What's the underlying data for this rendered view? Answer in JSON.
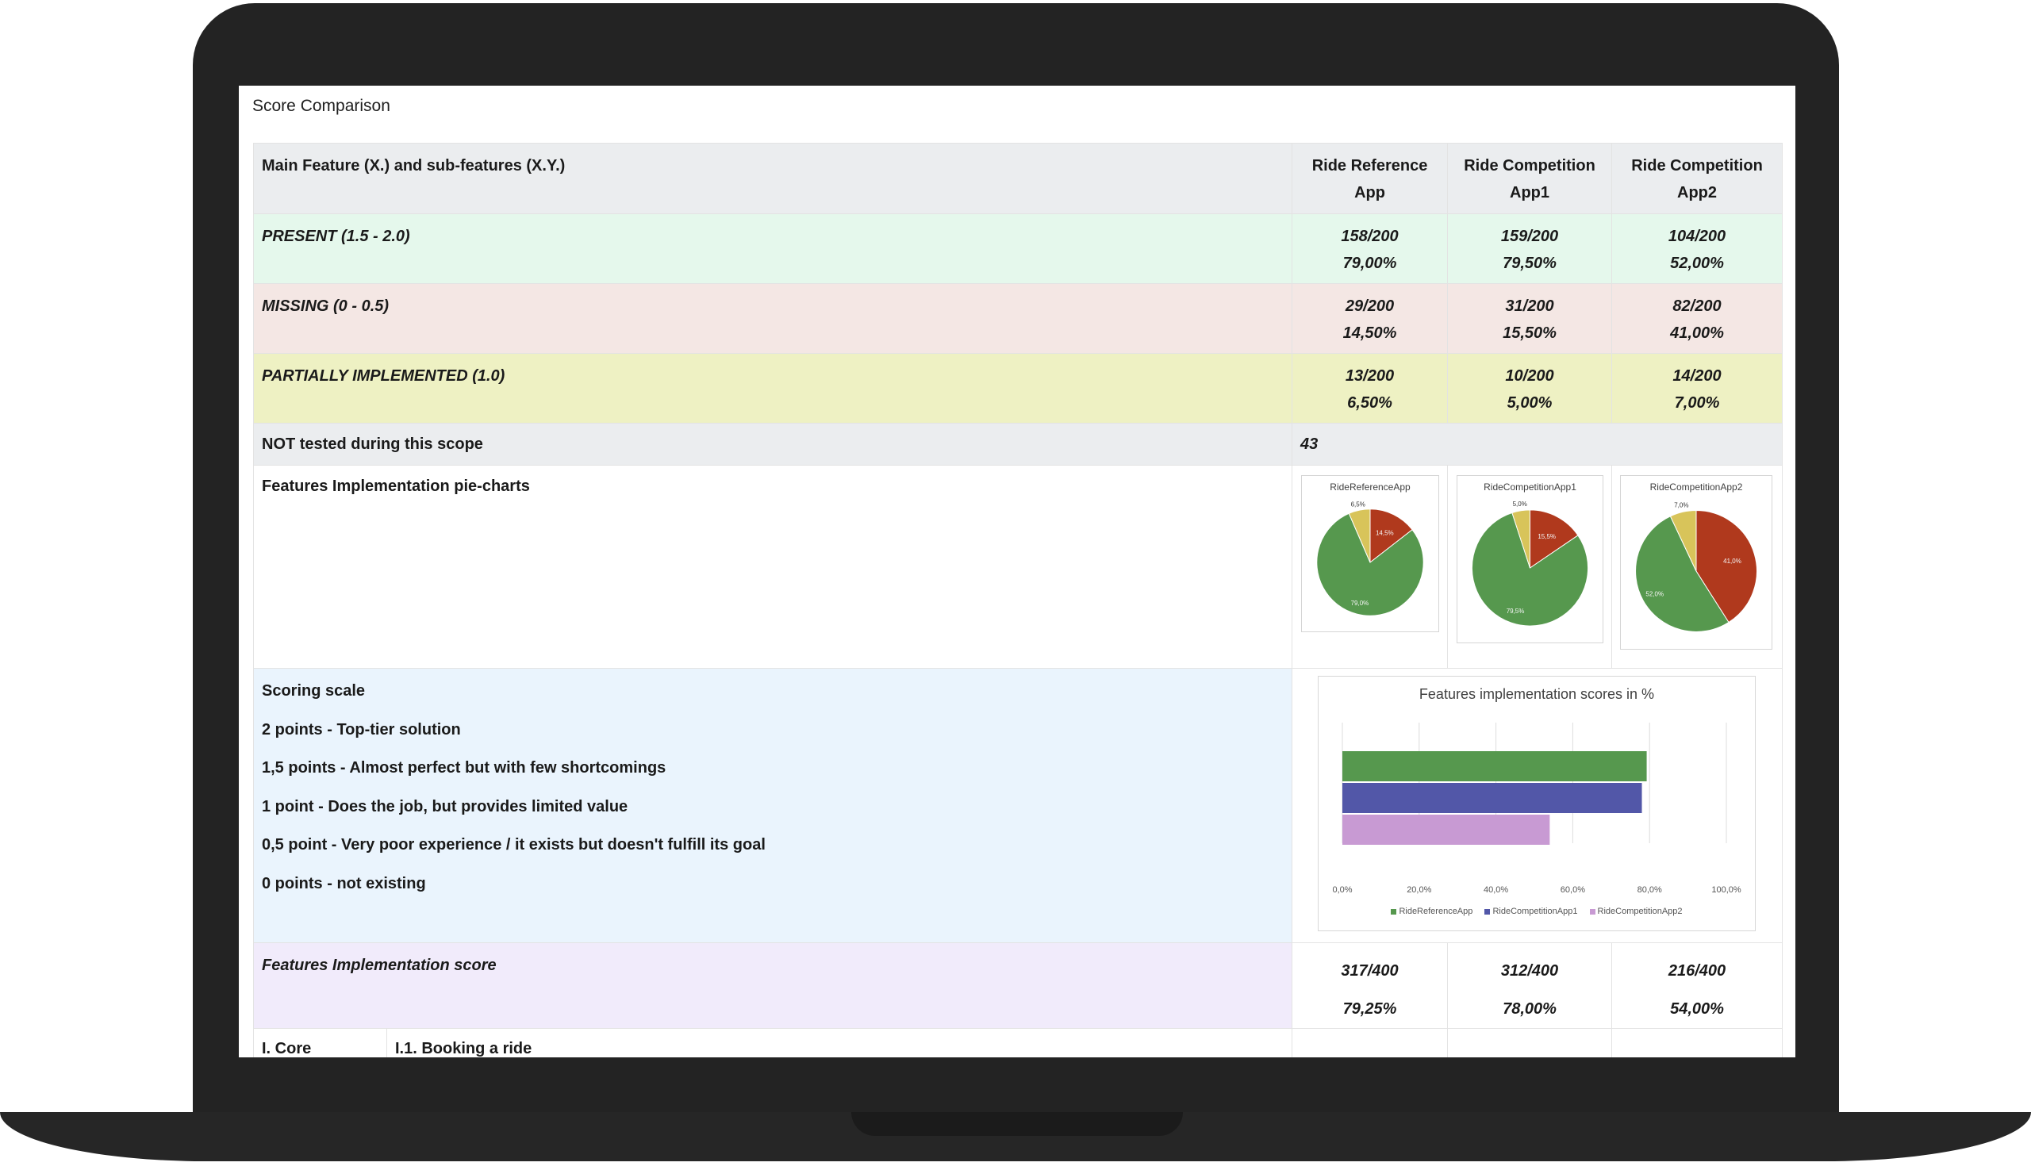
{
  "page": {
    "title": "Score Comparison"
  },
  "colors": {
    "present": "#56984e",
    "missing": "#b0391d",
    "partial": "#d8c45a",
    "app1_bar": "#5257a8",
    "app2_bar": "#c89ad3"
  },
  "table": {
    "header": {
      "feature": "Main Feature (X.) and sub-features (X.Y.)",
      "col1_line1": "Ride Reference",
      "col1_line2": "App",
      "col2_line1": "Ride Competition",
      "col2_line2": "App1",
      "col3_line1": "Ride Competition",
      "col3_line2": "App2"
    },
    "rows": [
      {
        "label": "PRESENT (1.5 - 2.0)",
        "values": [
          [
            "158/200",
            "79,00%"
          ],
          [
            "159/200",
            "79,50%"
          ],
          [
            "104/200",
            "52,00%"
          ]
        ]
      },
      {
        "label": "MISSING (0 - 0.5)",
        "values": [
          [
            "29/200",
            "14,50%"
          ],
          [
            "31/200",
            "15,50%"
          ],
          [
            "82/200",
            "41,00%"
          ]
        ]
      },
      {
        "label": "PARTIALLY IMPLEMENTED (1.0)",
        "values": [
          [
            "13/200",
            "6,50%"
          ],
          [
            "10/200",
            "5,00%"
          ],
          [
            "14/200",
            "7,00%"
          ]
        ]
      }
    ],
    "not_tested": {
      "label": "NOT tested during this scope",
      "value": "43"
    },
    "pie_label": "Features Implementation pie-charts",
    "scale": {
      "title": "Scoring scale",
      "lines": [
        "2 points - Top-tier solution",
        "1,5 points - Almost perfect but with few shortcomings",
        "1 point - Does the job, but provides limited value",
        "0,5 point - Very poor experience / it exists but doesn't fulfill its goal",
        "0 points - not existing"
      ]
    },
    "score": {
      "label": "Features Implementation score",
      "values": [
        [
          "317/400",
          "79,25%"
        ],
        [
          "312/400",
          "78,00%"
        ],
        [
          "216/400",
          "54,00%"
        ]
      ]
    },
    "core": {
      "main": "I. Core",
      "sub": "I.1. Booking a ride"
    }
  },
  "chart_data": [
    {
      "type": "pie",
      "title": "RideReferenceApp",
      "slices": [
        {
          "label": "79,0%",
          "value": 79.0
        },
        {
          "label": "6,5%",
          "value": 6.5
        },
        {
          "label": "14,5%",
          "value": 14.5
        }
      ]
    },
    {
      "type": "pie",
      "title": "RideCompetitionApp1",
      "slices": [
        {
          "label": "79,5%",
          "value": 79.5
        },
        {
          "label": "5,0%",
          "value": 5.0
        },
        {
          "label": "15,5%",
          "value": 15.5
        }
      ]
    },
    {
      "type": "pie",
      "title": "RideCompetitionApp2",
      "slices": [
        {
          "label": "52,0%",
          "value": 52.0
        },
        {
          "label": "7,0%",
          "value": 7.0
        },
        {
          "label": "41,0%",
          "value": 41.0
        }
      ]
    },
    {
      "type": "bar",
      "orientation": "horizontal",
      "title": "Features implementation scores in %",
      "series": [
        {
          "name": "RideReferenceApp",
          "values": [
            79.25
          ]
        },
        {
          "name": "RideCompetitionApp1",
          "values": [
            78.0
          ]
        },
        {
          "name": "RideCompetitionApp2",
          "values": [
            54.0
          ]
        }
      ],
      "xlim": [
        0,
        100
      ],
      "ticks": [
        "0,0%",
        "20,0%",
        "40,0%",
        "60,0%",
        "80,0%",
        "100,0%"
      ],
      "grid": true,
      "legend": "bottom"
    }
  ]
}
